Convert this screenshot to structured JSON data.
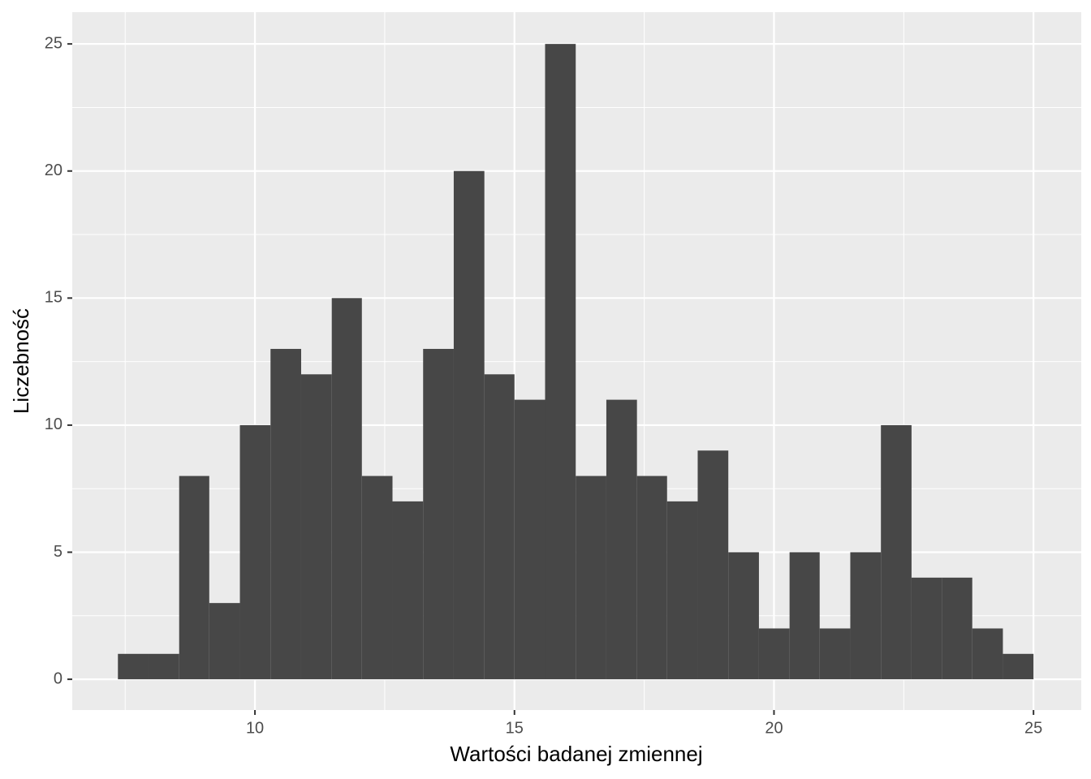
{
  "chart_data": {
    "type": "histogram",
    "x_label": "Wartości badanej zmiennej",
    "y_label": "Liczebność",
    "bins": [
      7.36,
      7.95,
      8.54,
      9.12,
      9.71,
      10.3,
      10.89,
      11.48,
      12.06,
      12.65,
      13.24,
      13.83,
      14.42,
      15.0,
      15.59,
      16.18,
      16.77,
      17.36,
      17.94,
      18.53,
      19.12,
      19.71,
      20.3,
      20.88,
      21.47,
      22.06,
      22.65,
      23.24,
      23.82,
      24.41,
      25.0
    ],
    "counts": [
      1,
      1,
      8,
      3,
      10,
      13,
      12,
      15,
      8,
      7,
      13,
      20,
      12,
      11,
      25,
      8,
      11,
      8,
      7,
      9,
      5,
      2,
      5,
      2,
      5,
      10,
      4,
      4,
      2,
      1
    ],
    "color": "#474747",
    "xlim": [
      6.48,
      25.92
    ],
    "xticks": [
      10,
      15,
      20,
      25
    ],
    "ylim": [
      -1.21,
      26.25
    ],
    "yticks": [
      0,
      5,
      10,
      15,
      20,
      25
    ],
    "grid": true
  }
}
